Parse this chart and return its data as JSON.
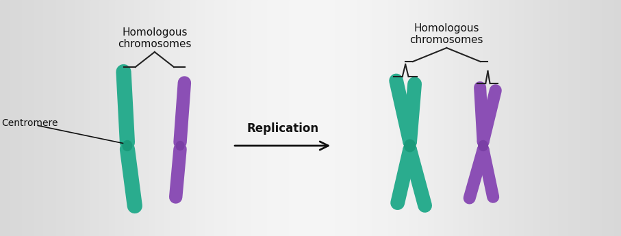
{
  "teal": "#2aac8e",
  "purple": "#8b4fb5",
  "centromere_teal": "#1a9a7a",
  "centromere_purple": "#7a3fa5",
  "label_homologous": "Homologous\nchromosomes",
  "label_centromere": "Centromere",
  "label_replication": "Replication",
  "arrow_color": "#111111",
  "text_color": "#111111",
  "bracket_color": "#222222"
}
